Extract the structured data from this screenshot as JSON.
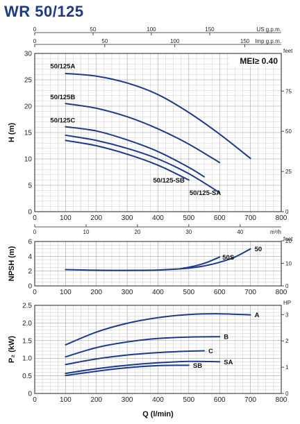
{
  "title": "WR 50/125",
  "colors": {
    "curve": "#1b3a8c",
    "grid_minor": "#c9c9c9",
    "grid_major": "#8f8f8f",
    "title": "#1b3a8c"
  },
  "chart_data": [
    {
      "id": "head",
      "type": "line",
      "ylabel": "H (m)",
      "ylabel_right": "feet",
      "xlim": [
        0,
        800
      ],
      "ylim": [
        0,
        30
      ],
      "x_ticks": [
        0,
        100,
        200,
        300,
        400,
        500,
        600,
        700,
        800
      ],
      "y_ticks": [
        0,
        5,
        10,
        15,
        20,
        25,
        30
      ],
      "right_ticks": [
        {
          "label": "0",
          "v": 0
        },
        {
          "label": "25",
          "v": 7.62
        },
        {
          "label": "50",
          "v": 15.24
        },
        {
          "label": "75",
          "v": 22.86
        }
      ],
      "top_axes": [
        {
          "label": "US g.p.m.",
          "ticks": [
            {
              "label": "0",
              "v": 0
            },
            {
              "label": "50",
              "v": 189.3
            },
            {
              "label": "100",
              "v": 378.5
            },
            {
              "label": "150",
              "v": 567.8
            }
          ]
        },
        {
          "label": "Imp g.p.m.",
          "ticks": [
            {
              "label": "0",
              "v": 0
            },
            {
              "label": "50",
              "v": 227.3
            },
            {
              "label": "100",
              "v": 454.6
            },
            {
              "label": "150",
              "v": 681.9
            }
          ]
        }
      ],
      "bottom_axis": {
        "label": "m³/h",
        "ticks": [
          {
            "label": "0",
            "v": 0
          },
          {
            "label": "10",
            "v": 166.7
          },
          {
            "label": "20",
            "v": 333.3
          },
          {
            "label": "30",
            "v": 500
          },
          {
            "label": "40",
            "v": 666.7
          }
        ]
      },
      "annotation": "MEI≥ 0.40",
      "grid": true,
      "series": [
        {
          "name": "50/125A",
          "x": [
            100,
            200,
            300,
            400,
            500,
            600,
            700
          ],
          "y": [
            26.2,
            25.7,
            24.4,
            22.2,
            18.8,
            14.7,
            10.1
          ]
        },
        {
          "name": "50/125B",
          "x": [
            100,
            200,
            300,
            400,
            500,
            600
          ],
          "y": [
            20.5,
            19.6,
            18.0,
            15.7,
            12.8,
            9.3
          ]
        },
        {
          "name": "50/125C",
          "x": [
            100,
            200,
            300,
            400,
            500,
            550
          ],
          "y": [
            16.1,
            15.3,
            13.6,
            11.4,
            8.4,
            6.6
          ]
        },
        {
          "name": "50/125-SA",
          "x": [
            100,
            200,
            300,
            400,
            500,
            600
          ],
          "y": [
            14.5,
            13.5,
            12.0,
            10.0,
            7.2,
            3.6
          ]
        },
        {
          "name": "50/125-SB",
          "x": [
            100,
            200,
            300,
            400,
            500
          ],
          "y": [
            13.5,
            12.5,
            10.9,
            8.8,
            6.0
          ]
        }
      ]
    },
    {
      "id": "npsh",
      "type": "line",
      "ylabel": "NPSH (m)",
      "ylabel_right": "feet",
      "xlim": [
        0,
        800
      ],
      "ylim": [
        0,
        6
      ],
      "x_ticks": [
        0,
        100,
        200,
        300,
        400,
        500,
        600,
        700,
        800
      ],
      "y_ticks": [
        0,
        2,
        4,
        6
      ],
      "right_ticks": [
        {
          "label": "0",
          "v": 0
        },
        {
          "label": "10",
          "v": 3.048
        },
        {
          "label": "20",
          "v": 6.096
        }
      ],
      "grid": true,
      "series": [
        {
          "name": "50",
          "x": [
            100,
            200,
            300,
            400,
            500,
            550,
            600,
            650,
            700
          ],
          "y": [
            2.2,
            2.12,
            2.1,
            2.15,
            2.4,
            2.7,
            3.2,
            3.9,
            5.0
          ]
        },
        {
          "name": "50S",
          "x": [
            470,
            520,
            560,
            600
          ],
          "y": [
            2.3,
            2.7,
            3.2,
            3.9
          ]
        }
      ]
    },
    {
      "id": "power",
      "type": "line",
      "ylabel": "P₂ (kW)",
      "ylabel_right": "HP",
      "xlabel": "Q (l/min)",
      "xlim": [
        0,
        800
      ],
      "ylim": [
        0,
        2.5
      ],
      "x_ticks": [
        0,
        100,
        200,
        300,
        400,
        500,
        600,
        700,
        800
      ],
      "y_ticks": [
        0,
        0.5,
        1.0,
        1.5,
        2.0,
        2.5
      ],
      "y_tick_labels": [
        "0",
        "0.5",
        "1.0",
        "1.5",
        "2.0",
        "2.5"
      ],
      "right_ticks": [
        {
          "label": "0",
          "v": 0
        },
        {
          "label": "1",
          "v": 0.746
        },
        {
          "label": "2",
          "v": 1.492
        },
        {
          "label": "3",
          "v": 2.238
        }
      ],
      "grid": true,
      "series": [
        {
          "name": "A",
          "x": [
            100,
            200,
            300,
            400,
            500,
            600,
            700
          ],
          "y": [
            1.38,
            1.74,
            1.99,
            2.15,
            2.24,
            2.26,
            2.23
          ]
        },
        {
          "name": "B",
          "x": [
            100,
            200,
            300,
            400,
            500,
            600
          ],
          "y": [
            1.04,
            1.3,
            1.46,
            1.56,
            1.6,
            1.61
          ]
        },
        {
          "name": "C",
          "x": [
            100,
            200,
            300,
            400,
            500,
            550
          ],
          "y": [
            0.82,
            0.98,
            1.09,
            1.16,
            1.2,
            1.21
          ]
        },
        {
          "name": "SA",
          "x": [
            100,
            200,
            300,
            400,
            500,
            600
          ],
          "y": [
            0.57,
            0.7,
            0.8,
            0.87,
            0.91,
            0.9
          ]
        },
        {
          "name": "SB",
          "x": [
            100,
            200,
            300,
            400,
            500
          ],
          "y": [
            0.51,
            0.63,
            0.73,
            0.79,
            0.8
          ]
        }
      ]
    }
  ]
}
